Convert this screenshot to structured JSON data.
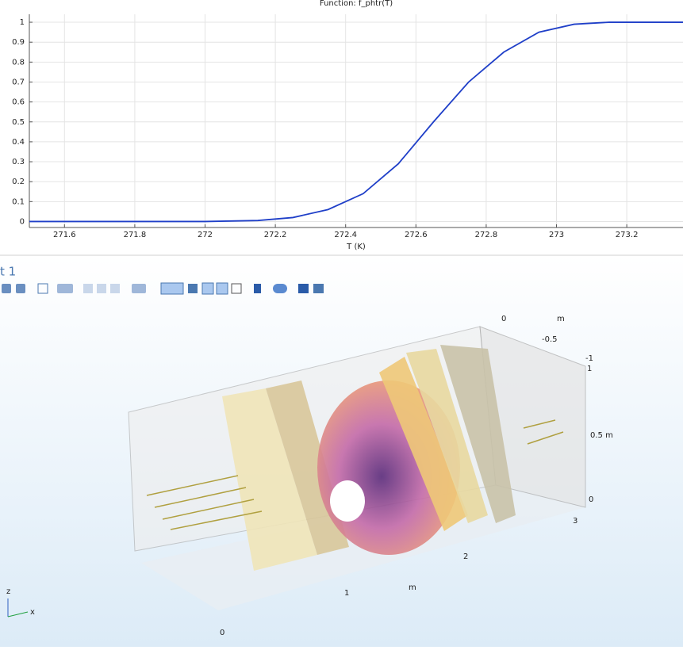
{
  "chart_data": {
    "type": "line",
    "title": "Function: f_phtr(T)",
    "x_label": "T (K)",
    "x": [
      271.5,
      272.0,
      272.15,
      272.25,
      272.35,
      272.45,
      272.55,
      272.65,
      272.75,
      272.85,
      272.95,
      273.05,
      273.15,
      273.36
    ],
    "values": [
      0,
      0,
      0.005,
      0.02,
      0.06,
      0.14,
      0.29,
      0.5,
      0.7,
      0.85,
      0.95,
      0.99,
      1,
      1
    ],
    "color": "#1f3fc8",
    "xlim": [
      271.5,
      273.36
    ],
    "xticks": [
      271.6,
      271.8,
      272,
      272.2,
      272.4,
      272.6,
      272.8,
      273,
      273.2
    ],
    "ylim": [
      -0.03,
      1.04
    ],
    "yticks": [
      0,
      0.1,
      0.2,
      0.3,
      0.4,
      0.5,
      0.6,
      0.7,
      0.8,
      0.9,
      1
    ],
    "grid": true
  },
  "plot_window": {
    "title": "t 1"
  },
  "view3d": {
    "labels": [
      "0",
      "m",
      "-0.5",
      "-1",
      "1",
      "0.5 m",
      "0",
      "3",
      "2",
      "1",
      "m",
      "0",
      "z",
      "x"
    ]
  }
}
